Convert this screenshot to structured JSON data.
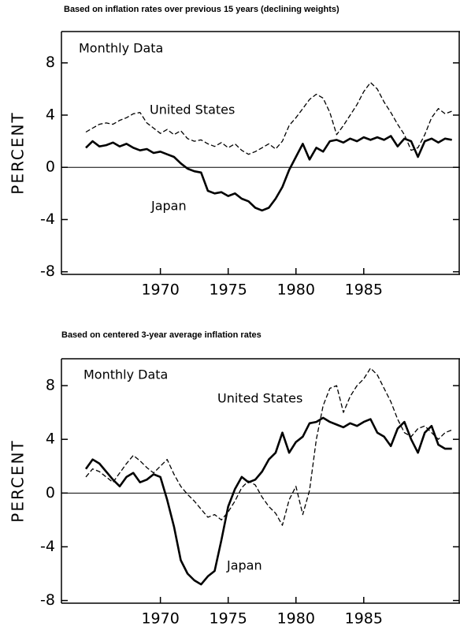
{
  "chart_data": [
    {
      "type": "line",
      "title": "Based on inflation rates over previous 15 years (declining weights)",
      "annotation": "Monthly Data",
      "ylabel": "PERCENT",
      "xlim": [
        1962.7,
        1992.1
      ],
      "xticks": [
        1970,
        1975,
        1980,
        1985
      ],
      "ylim": [
        -8.2,
        10.4
      ],
      "yticks": [
        -8,
        -4,
        0,
        4,
        8
      ],
      "x": [
        1964.5,
        1965,
        1965.5,
        1966,
        1966.5,
        1967,
        1967.5,
        1968,
        1968.5,
        1969,
        1969.5,
        1970,
        1970.5,
        1971,
        1971.5,
        1972,
        1972.5,
        1973,
        1973.5,
        1974,
        1974.5,
        1975,
        1975.5,
        1976,
        1976.5,
        1977,
        1977.5,
        1978,
        1978.5,
        1979,
        1979.5,
        1980,
        1980.5,
        1981,
        1981.5,
        1982,
        1982.5,
        1983,
        1983.5,
        1984,
        1984.5,
        1985,
        1985.5,
        1986,
        1986.5,
        1987,
        1987.5,
        1988,
        1988.5,
        1989,
        1989.5,
        1990,
        1990.5,
        1991,
        1991.5
      ],
      "series": [
        {
          "name": "United States",
          "color": "#000000",
          "style": "dashed",
          "values": [
            2.7,
            3.0,
            3.3,
            3.4,
            3.3,
            3.6,
            3.8,
            4.1,
            4.2,
            3.4,
            3.0,
            2.6,
            2.9,
            2.5,
            2.8,
            2.2,
            2.0,
            2.1,
            1.8,
            1.6,
            1.9,
            1.5,
            1.8,
            1.3,
            1.0,
            1.2,
            1.5,
            1.8,
            1.4,
            2.0,
            3.2,
            3.8,
            4.5,
            5.2,
            5.6,
            5.3,
            4.2,
            2.5,
            3.2,
            4.0,
            4.8,
            5.8,
            6.5,
            6.0,
            5.0,
            4.2,
            3.3,
            2.5,
            1.3,
            1.5,
            2.5,
            3.8,
            4.5,
            4.1,
            4.3
          ]
        },
        {
          "name": "Japan",
          "color": "#000000",
          "style": "solid",
          "values": [
            1.5,
            2.0,
            1.6,
            1.7,
            1.9,
            1.6,
            1.8,
            1.5,
            1.3,
            1.4,
            1.1,
            1.2,
            1.0,
            0.8,
            0.3,
            -0.1,
            -0.3,
            -0.4,
            -1.8,
            -2.0,
            -1.9,
            -2.2,
            -2.0,
            -2.4,
            -2.6,
            -3.1,
            -3.3,
            -3.1,
            -2.4,
            -1.5,
            -0.2,
            0.8,
            1.8,
            0.6,
            1.5,
            1.2,
            2.0,
            2.1,
            1.9,
            2.2,
            2.0,
            2.3,
            2.1,
            2.3,
            2.1,
            2.4,
            1.6,
            2.2,
            2.0,
            0.8,
            2.0,
            2.2,
            1.9,
            2.2,
            2.1
          ]
        }
      ]
    },
    {
      "type": "line",
      "title": "Based on centered 3-year average inflation rates",
      "annotation": "Monthly Data",
      "ylabel": "PERCENT",
      "xlim": [
        1962.7,
        1992.1
      ],
      "xticks": [
        1970,
        1975,
        1980,
        1985
      ],
      "ylim": [
        -8.2,
        10.0
      ],
      "yticks": [
        -8,
        -4,
        0,
        4,
        8
      ],
      "x": [
        1964.5,
        1965,
        1965.5,
        1966,
        1966.5,
        1967,
        1967.5,
        1968,
        1968.5,
        1969,
        1969.5,
        1970,
        1970.5,
        1971,
        1971.5,
        1972,
        1972.5,
        1973,
        1973.5,
        1974,
        1974.5,
        1975,
        1975.5,
        1976,
        1976.5,
        1977,
        1977.5,
        1978,
        1978.5,
        1979,
        1979.5,
        1980,
        1980.5,
        1981,
        1981.5,
        1982,
        1982.5,
        1983,
        1983.5,
        1984,
        1984.5,
        1985,
        1985.5,
        1986,
        1986.5,
        1987,
        1987.5,
        1988,
        1988.5,
        1989,
        1989.5,
        1990,
        1990.5,
        1991,
        1991.5
      ],
      "series": [
        {
          "name": "United States",
          "color": "#000000",
          "style": "dashed",
          "values": [
            1.2,
            1.8,
            1.6,
            1.2,
            0.8,
            1.5,
            2.2,
            2.8,
            2.4,
            1.9,
            1.5,
            2.0,
            2.5,
            1.4,
            0.5,
            -0.1,
            -0.6,
            -1.2,
            -1.8,
            -1.6,
            -2.0,
            -1.4,
            -0.6,
            0.4,
            0.9,
            0.6,
            -0.3,
            -1.0,
            -1.5,
            -2.4,
            -0.5,
            0.5,
            -1.6,
            0.2,
            4.0,
            6.5,
            7.8,
            8.0,
            6.0,
            7.2,
            8.0,
            8.5,
            9.3,
            8.8,
            7.8,
            6.8,
            5.5,
            4.5,
            4.2,
            4.8,
            5.0,
            4.5,
            4.0,
            4.5,
            4.7
          ]
        },
        {
          "name": "Japan",
          "color": "#000000",
          "style": "solid",
          "values": [
            1.8,
            2.5,
            2.2,
            1.6,
            1.0,
            0.5,
            1.2,
            1.5,
            0.8,
            1.0,
            1.4,
            1.2,
            -0.5,
            -2.5,
            -5.0,
            -6.0,
            -6.5,
            -6.8,
            -6.2,
            -5.8,
            -3.5,
            -1.0,
            0.3,
            1.2,
            0.8,
            1.0,
            1.6,
            2.5,
            3.0,
            4.5,
            3.0,
            3.8,
            4.2,
            5.2,
            5.3,
            5.6,
            5.3,
            5.1,
            4.9,
            5.2,
            5.0,
            5.3,
            5.5,
            4.5,
            4.2,
            3.5,
            4.8,
            5.3,
            4.0,
            3.0,
            4.5,
            5.0,
            3.6,
            3.3,
            3.3
          ]
        }
      ]
    }
  ]
}
